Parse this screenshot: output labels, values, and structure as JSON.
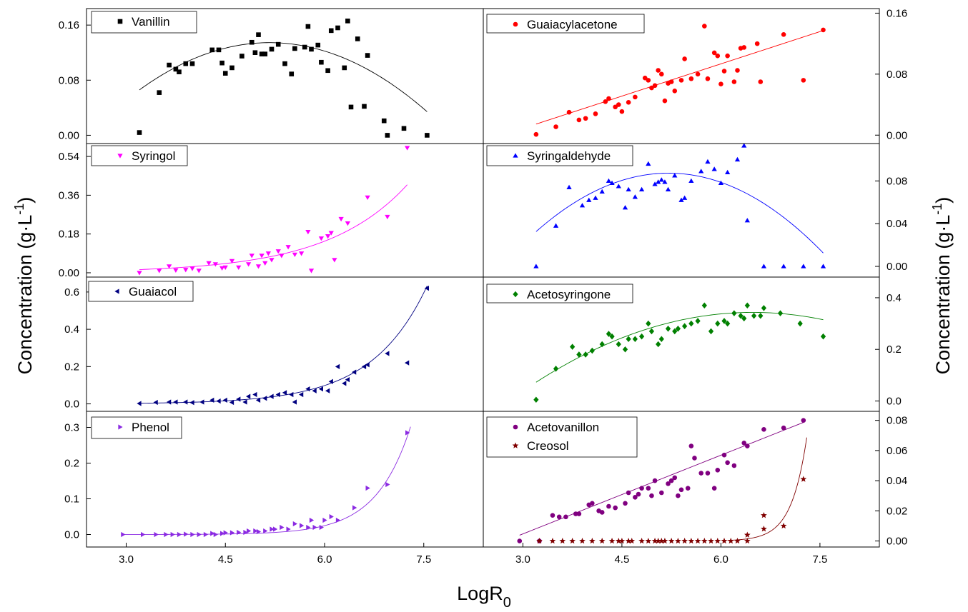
{
  "figure": {
    "ylabel_left": "Concentration (g·L",
    "ylabel_right": "Concentration (g·L",
    "ylabel_superscript": "-1",
    "ylabel_close": ")",
    "xlabel_main": "LogR",
    "xlabel_subscript": "0",
    "x_ticks": [
      "3.0",
      "4.5",
      "6.0",
      "7.5"
    ]
  },
  "chart_data": [
    {
      "type": "scatter",
      "panel": "top-left",
      "xlim": [
        2.4,
        8.4
      ],
      "ylim": [
        -0.012,
        0.184
      ],
      "yticks": [
        0.0,
        0.08,
        0.16
      ],
      "ytick_labels": [
        "0.00",
        "0.08",
        "0.16"
      ],
      "series": [
        {
          "name": "Vanillin",
          "marker": "square",
          "color": "#000000",
          "x": [
            3.2,
            3.5,
            3.65,
            3.75,
            3.8,
            3.9,
            4.0,
            4.3,
            4.4,
            4.45,
            4.5,
            4.6,
            4.75,
            4.9,
            4.95,
            5.0,
            5.05,
            5.1,
            5.2,
            5.3,
            5.4,
            5.5,
            5.55,
            5.7,
            5.75,
            5.8,
            5.9,
            5.95,
            6.05,
            6.1,
            6.2,
            6.3,
            6.35,
            6.4,
            6.5,
            6.6,
            6.65,
            6.9,
            6.95,
            7.2,
            7.55
          ],
          "y": [
            0.004,
            0.062,
            0.102,
            0.096,
            0.092,
            0.104,
            0.104,
            0.124,
            0.124,
            0.105,
            0.09,
            0.098,
            0.115,
            0.135,
            0.12,
            0.146,
            0.118,
            0.118,
            0.125,
            0.132,
            0.104,
            0.089,
            0.126,
            0.128,
            0.158,
            0.125,
            0.131,
            0.106,
            0.094,
            0.152,
            0.156,
            0.098,
            0.166,
            0.041,
            0.14,
            0.042,
            0.116,
            0.021,
            0.0,
            0.01,
            0.0
          ]
        }
      ],
      "fits": [
        {
          "type": "polynomial",
          "coefficients": [
            -0.3385,
            0.183,
            -0.0177
          ],
          "range": [
            3.2,
            7.55
          ],
          "color": "#000000"
        }
      ]
    },
    {
      "type": "scatter",
      "panel": "top-right",
      "xlim": [
        2.4,
        8.4
      ],
      "ylim": [
        -0.011,
        0.166
      ],
      "yticks": [
        0.0,
        0.08,
        0.16
      ],
      "ytick_labels": [
        "0.00",
        "0.08",
        "0.16"
      ],
      "series": [
        {
          "name": "Guaiacylacetone",
          "marker": "circle",
          "color": "#ff0000",
          "x": [
            3.2,
            3.5,
            3.7,
            3.85,
            3.95,
            4.1,
            4.25,
            4.3,
            4.4,
            4.45,
            4.5,
            4.6,
            4.7,
            4.85,
            4.9,
            4.95,
            5.0,
            5.05,
            5.1,
            5.15,
            5.2,
            5.25,
            5.3,
            5.4,
            5.45,
            5.55,
            5.65,
            5.75,
            5.8,
            5.9,
            5.95,
            6.0,
            6.05,
            6.1,
            6.2,
            6.25,
            6.3,
            6.35,
            6.55,
            6.6,
            6.95,
            7.25,
            7.55
          ],
          "y": [
            0.001,
            0.011,
            0.03,
            0.02,
            0.022,
            0.028,
            0.044,
            0.048,
            0.037,
            0.04,
            0.031,
            0.043,
            0.05,
            0.075,
            0.072,
            0.062,
            0.065,
            0.085,
            0.08,
            0.045,
            0.068,
            0.07,
            0.058,
            0.072,
            0.1,
            0.074,
            0.08,
            0.143,
            0.074,
            0.108,
            0.104,
            0.067,
            0.084,
            0.104,
            0.07,
            0.085,
            0.114,
            0.115,
            0.12,
            0.07,
            0.132,
            0.072,
            0.138
          ]
        }
      ],
      "fits": [
        {
          "type": "polynomial",
          "coefficients": [
            -0.0757,
            0.0282
          ],
          "range": [
            3.2,
            7.55
          ],
          "color": "#ff0000"
        }
      ]
    },
    {
      "type": "scatter",
      "panel": "middle-upper-left",
      "xlim": [
        2.4,
        8.4
      ],
      "ylim": [
        -0.02,
        0.6
      ],
      "yticks": [
        0.0,
        0.18,
        0.36,
        0.54
      ],
      "ytick_labels": [
        "0.00",
        "0.18",
        "0.36",
        "0.54"
      ],
      "series": [
        {
          "name": "Syringol",
          "marker": "triangle-down",
          "color": "#ff00ff",
          "x": [
            3.2,
            3.5,
            3.65,
            3.75,
            3.9,
            4.0,
            4.1,
            4.25,
            4.35,
            4.45,
            4.5,
            4.6,
            4.7,
            4.85,
            4.9,
            5.0,
            5.05,
            5.1,
            5.15,
            5.2,
            5.3,
            5.35,
            5.45,
            5.55,
            5.65,
            5.75,
            5.8,
            5.95,
            6.05,
            6.1,
            6.15,
            6.25,
            6.35,
            6.65,
            6.95,
            7.25
          ],
          "y": [
            0.0,
            0.01,
            0.03,
            0.012,
            0.014,
            0.02,
            0.01,
            0.045,
            0.04,
            0.022,
            0.025,
            0.055,
            0.025,
            0.04,
            0.08,
            0.03,
            0.08,
            0.045,
            0.09,
            0.06,
            0.1,
            0.08,
            0.12,
            0.085,
            0.09,
            0.19,
            0.01,
            0.16,
            0.17,
            0.185,
            0.06,
            0.25,
            0.23,
            0.35,
            0.26,
            0.58
          ]
        }
      ],
      "fits": [
        {
          "type": "exponential",
          "a": 0.00107,
          "b": 0.82,
          "range": [
            3.2,
            7.25
          ],
          "color": "#ff00ff"
        }
      ]
    },
    {
      "type": "scatter",
      "panel": "middle-upper-right",
      "xlim": [
        2.4,
        8.4
      ],
      "ylim": [
        -0.01,
        0.115
      ],
      "yticks": [
        0.0,
        0.04,
        0.08
      ],
      "ytick_labels": [
        "0.00",
        "0.04",
        "0.08"
      ],
      "series": [
        {
          "name": "Syringaldehyde",
          "marker": "triangle-up",
          "color": "#0000ff",
          "x": [
            3.2,
            3.5,
            3.7,
            3.9,
            4.0,
            4.1,
            4.2,
            4.3,
            4.35,
            4.45,
            4.55,
            4.6,
            4.7,
            4.8,
            4.9,
            5.0,
            5.05,
            5.1,
            5.15,
            5.2,
            5.3,
            5.4,
            5.45,
            5.55,
            5.7,
            5.8,
            5.9,
            6.0,
            6.1,
            6.25,
            6.35,
            6.4,
            6.65,
            6.95,
            7.25,
            7.55
          ],
          "y": [
            0.0,
            0.038,
            0.074,
            0.057,
            0.062,
            0.064,
            0.07,
            0.08,
            0.078,
            0.075,
            0.055,
            0.072,
            0.065,
            0.072,
            0.096,
            0.077,
            0.079,
            0.081,
            0.079,
            0.072,
            0.085,
            0.062,
            0.064,
            0.08,
            0.089,
            0.098,
            0.091,
            0.078,
            0.088,
            0.1,
            0.113,
            0.043,
            0.0,
            0.0,
            0.0,
            0.0
          ]
        }
      ],
      "fits": [
        {
          "type": "polynomial",
          "coefficients": [
            -0.2813,
            0.1416,
            -0.0136
          ],
          "range": [
            3.2,
            7.55
          ],
          "color": "#0000ff"
        }
      ]
    },
    {
      "type": "scatter",
      "panel": "middle-lower-left",
      "xlim": [
        2.4,
        8.4
      ],
      "ylim": [
        -0.04,
        0.68
      ],
      "yticks": [
        0.0,
        0.2,
        0.4,
        0.6
      ],
      "ytick_labels": [
        "0.0",
        "0.2",
        "0.4",
        "0.6"
      ],
      "series": [
        {
          "name": "Guaiacol",
          "marker": "triangle-left",
          "color": "#000080",
          "x": [
            3.2,
            3.45,
            3.65,
            3.75,
            3.9,
            4.0,
            4.15,
            4.3,
            4.4,
            4.5,
            4.6,
            4.7,
            4.8,
            4.85,
            4.95,
            5.0,
            5.1,
            5.2,
            5.3,
            5.4,
            5.5,
            5.55,
            5.65,
            5.75,
            5.85,
            5.95,
            6.05,
            6.1,
            6.2,
            6.3,
            6.35,
            6.45,
            6.6,
            6.65,
            6.95,
            7.25,
            7.55
          ],
          "y": [
            0.002,
            0.008,
            0.01,
            0.01,
            0.01,
            0.007,
            0.01,
            0.02,
            0.015,
            0.02,
            0.008,
            0.025,
            0.01,
            0.04,
            0.05,
            0.02,
            0.03,
            0.04,
            0.05,
            0.06,
            0.05,
            0.01,
            0.05,
            0.08,
            0.07,
            0.08,
            0.07,
            0.12,
            0.2,
            0.11,
            0.13,
            0.17,
            0.2,
            0.21,
            0.27,
            0.22,
            0.62
          ]
        }
      ],
      "fits": [
        {
          "type": "exponential",
          "a": 7.35e-05,
          "b": 1.2,
          "range": [
            3.2,
            7.55
          ],
          "color": "#000080"
        }
      ]
    },
    {
      "type": "scatter",
      "panel": "middle-lower-right",
      "xlim": [
        2.4,
        8.4
      ],
      "ylim": [
        -0.04,
        0.48
      ],
      "yticks": [
        0.0,
        0.2,
        0.4
      ],
      "ytick_labels": [
        "0.0",
        "0.2",
        "0.4"
      ],
      "series": [
        {
          "name": "Acetosyringone",
          "marker": "diamond",
          "color": "#008000",
          "x": [
            3.2,
            3.5,
            3.75,
            3.85,
            3.95,
            4.05,
            4.2,
            4.3,
            4.35,
            4.45,
            4.55,
            4.6,
            4.7,
            4.8,
            4.9,
            4.95,
            5.05,
            5.1,
            5.2,
            5.3,
            5.35,
            5.45,
            5.55,
            5.65,
            5.75,
            5.85,
            5.95,
            6.05,
            6.1,
            6.2,
            6.3,
            6.35,
            6.4,
            6.5,
            6.6,
            6.65,
            6.9,
            7.2,
            7.55
          ],
          "y": [
            0.005,
            0.125,
            0.21,
            0.18,
            0.18,
            0.195,
            0.22,
            0.26,
            0.25,
            0.22,
            0.2,
            0.24,
            0.24,
            0.25,
            0.3,
            0.27,
            0.22,
            0.24,
            0.28,
            0.27,
            0.28,
            0.29,
            0.3,
            0.31,
            0.37,
            0.27,
            0.3,
            0.31,
            0.3,
            0.34,
            0.33,
            0.32,
            0.37,
            0.33,
            0.33,
            0.36,
            0.34,
            0.3,
            0.25
          ]
        }
      ],
      "fits": [
        {
          "type": "polynomial",
          "coefficients": [
            -0.712,
            0.3255,
            -0.0251
          ],
          "range": [
            3.2,
            7.55
          ],
          "color": "#008000"
        }
      ]
    },
    {
      "type": "scatter",
      "panel": "bottom-left",
      "xlim": [
        2.4,
        8.4
      ],
      "ylim": [
        -0.035,
        0.345
      ],
      "yticks": [
        0.0,
        0.1,
        0.2,
        0.3
      ],
      "ytick_labels": [
        "0.0",
        "0.1",
        "0.2",
        "0.3"
      ],
      "series": [
        {
          "name": "Phenol",
          "marker": "triangle-right",
          "color": "#8b2be2",
          "x": [
            2.95,
            3.25,
            3.45,
            3.6,
            3.7,
            3.8,
            3.9,
            4.0,
            4.1,
            4.2,
            4.3,
            4.35,
            4.45,
            4.5,
            4.6,
            4.7,
            4.8,
            4.85,
            4.95,
            5.0,
            5.1,
            5.2,
            5.25,
            5.35,
            5.45,
            5.55,
            5.65,
            5.75,
            5.8,
            5.85,
            5.95,
            6.0,
            6.1,
            6.2,
            6.45,
            6.65,
            6.95,
            7.25
          ],
          "y": [
            0.0,
            0.0,
            0.0,
            0.0,
            0.0,
            0.0,
            0.001,
            0.0,
            0.0,
            0.0,
            0.003,
            0.0,
            0.003,
            0.005,
            0.005,
            0.006,
            0.006,
            0.01,
            0.01,
            0.008,
            0.01,
            0.015,
            0.015,
            0.02,
            0.015,
            0.03,
            0.025,
            0.02,
            0.04,
            0.02,
            0.02,
            0.04,
            0.05,
            0.04,
            0.075,
            0.13,
            0.14,
            0.285
          ]
        }
      ],
      "fits": [
        {
          "type": "exponential",
          "a": 2.47e-07,
          "b": 1.92,
          "range": [
            2.95,
            7.3
          ],
          "color": "#8b2be2"
        }
      ]
    },
    {
      "type": "scatter",
      "panel": "bottom-right",
      "xlim": [
        2.4,
        8.4
      ],
      "ylim": [
        -0.004,
        0.086
      ],
      "yticks": [
        0.0,
        0.02,
        0.04,
        0.06,
        0.08
      ],
      "ytick_labels": [
        "0.00",
        "0.02",
        "0.04",
        "0.06",
        "0.08"
      ],
      "series": [
        {
          "name": "Acetovanillon",
          "marker": "circle",
          "color": "#800080",
          "x": [
            2.95,
            3.25,
            3.45,
            3.55,
            3.65,
            3.8,
            3.85,
            4.0,
            4.05,
            4.15,
            4.2,
            4.3,
            4.4,
            4.55,
            4.6,
            4.7,
            4.75,
            4.8,
            4.9,
            4.95,
            5.0,
            5.1,
            5.2,
            5.25,
            5.3,
            5.35,
            5.4,
            5.5,
            5.55,
            5.6,
            5.7,
            5.8,
            5.9,
            5.95,
            6.05,
            6.1,
            6.2,
            6.35,
            6.4,
            6.65,
            6.95,
            7.25
          ],
          "y": [
            0.0,
            0.0,
            0.017,
            0.016,
            0.016,
            0.018,
            0.018,
            0.024,
            0.025,
            0.02,
            0.019,
            0.023,
            0.022,
            0.025,
            0.032,
            0.029,
            0.031,
            0.035,
            0.035,
            0.03,
            0.04,
            0.032,
            0.038,
            0.04,
            0.042,
            0.03,
            0.034,
            0.035,
            0.063,
            0.055,
            0.045,
            0.045,
            0.035,
            0.047,
            0.057,
            0.052,
            0.05,
            0.065,
            0.063,
            0.074,
            0.075,
            0.08
          ]
        },
        {
          "name": "Creosol",
          "marker": "star",
          "color": "#800000",
          "x": [
            3.25,
            3.45,
            3.6,
            3.75,
            3.9,
            4.05,
            4.2,
            4.35,
            4.45,
            4.5,
            4.6,
            4.65,
            4.8,
            4.9,
            5.0,
            5.05,
            5.1,
            5.15,
            5.25,
            5.35,
            5.45,
            5.55,
            5.65,
            5.75,
            5.85,
            5.95,
            6.05,
            6.15,
            6.25,
            6.4,
            6.4,
            6.65,
            6.65,
            6.95,
            7.25
          ],
          "y": [
            0.0,
            0.0,
            0.0,
            0.0,
            0.0,
            0.0,
            0.0,
            0.0,
            0.0,
            0.0,
            0.0,
            0.0,
            0.0,
            0.0,
            0.0,
            0.0,
            0.0,
            0.0,
            0.0,
            0.0,
            0.0,
            0.0,
            0.0,
            0.0,
            0.0,
            0.0,
            0.0,
            0.0,
            0.0,
            0.0,
            0.004,
            0.017,
            0.008,
            0.01,
            0.041
          ]
        }
      ],
      "fits": [
        {
          "type": "polynomial",
          "coefficients": [
            -0.0475,
            0.0174
          ],
          "range": [
            2.95,
            7.25
          ],
          "color": "#800080"
        },
        {
          "type": "exponential",
          "a": 1.6e-15,
          "b": 4.3,
          "range": [
            6.1,
            7.3
          ],
          "color": "#800000"
        }
      ]
    }
  ]
}
